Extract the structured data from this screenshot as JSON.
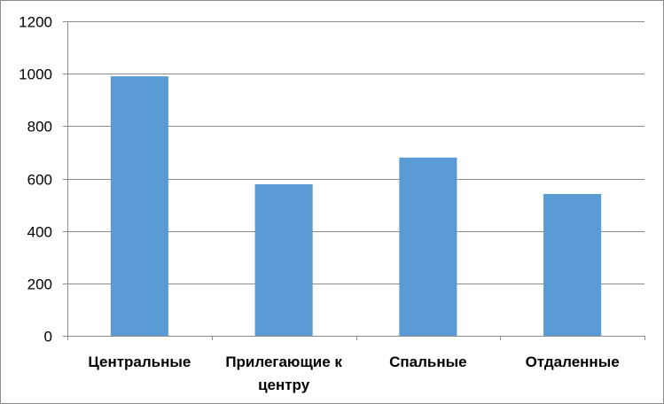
{
  "chart_data": {
    "type": "bar",
    "title": "",
    "xlabel": "",
    "ylabel": "",
    "categories": [
      [
        "Центральные"
      ],
      [
        "Прилегающие к",
        "центру"
      ],
      [
        "Спальные"
      ],
      [
        "Отдаленные"
      ]
    ],
    "values": [
      990,
      578,
      680,
      541
    ],
    "ylim": [
      0,
      1200
    ],
    "yticks": [
      0,
      200,
      400,
      600,
      800,
      1000,
      1200
    ],
    "grid": true,
    "legend": "none",
    "colors": {
      "bar": "#5b9bd5",
      "grid": "#8c8c8c",
      "axis": "#8c8c8c",
      "border": "#8c8c8c"
    }
  }
}
